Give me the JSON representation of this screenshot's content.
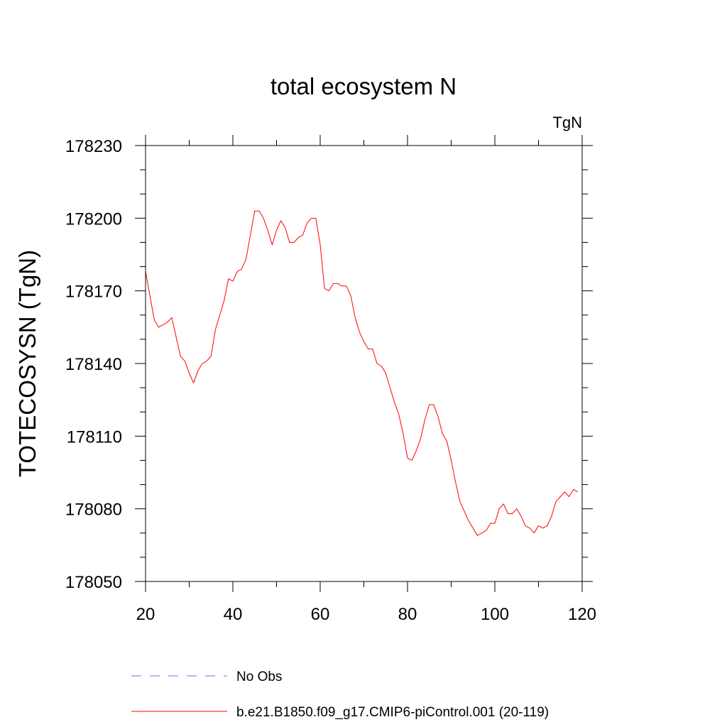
{
  "chart_data": {
    "type": "line",
    "title": "total ecosystem N",
    "units_label": "TgN",
    "ylabel": "TOTECOSYSN  (TgN)",
    "xlabel": "",
    "xlim": [
      20,
      120
    ],
    "ylim": [
      178050,
      178230
    ],
    "xticks": [
      20,
      40,
      60,
      80,
      100,
      120
    ],
    "yticks": [
      178050,
      178080,
      178110,
      178140,
      178170,
      178200,
      178230
    ],
    "x_minor_step": 10,
    "y_minor_step": 10,
    "grid": false,
    "legend_position": "bottom-left",
    "series": [
      {
        "name": "No Obs",
        "color": "#7b68ee",
        "style": "dashed",
        "x": [],
        "y": []
      },
      {
        "name": "b.e21.B1850.f09_g17.CMIP6-piControl.001 (20-119)",
        "color": "#ff0000",
        "style": "solid",
        "x": [
          20,
          21,
          22,
          23,
          24,
          25,
          26,
          27,
          28,
          29,
          30,
          31,
          32,
          33,
          34,
          35,
          36,
          37,
          38,
          39,
          40,
          41,
          42,
          43,
          44,
          45,
          46,
          47,
          48,
          49,
          50,
          51,
          52,
          53,
          54,
          55,
          56,
          57,
          58,
          59,
          60,
          61,
          62,
          63,
          64,
          65,
          66,
          67,
          68,
          69,
          70,
          71,
          72,
          73,
          74,
          75,
          76,
          77,
          78,
          79,
          80,
          81,
          82,
          83,
          84,
          85,
          86,
          87,
          88,
          89,
          90,
          91,
          92,
          93,
          94,
          95,
          96,
          97,
          98,
          99,
          100,
          101,
          102,
          103,
          104,
          105,
          106,
          107,
          108,
          109,
          110,
          111,
          112,
          113,
          114,
          115,
          116,
          117,
          118,
          119
        ],
        "y": [
          178178,
          178168,
          178158,
          178155,
          178156,
          178157,
          178159,
          178151,
          178143,
          178141,
          178136,
          178132,
          178137,
          178140,
          178141,
          178143,
          178154,
          178160,
          178166,
          178175,
          178174,
          178178,
          178179,
          178183,
          178193,
          178203,
          178203,
          178200,
          178195,
          178189,
          178195,
          178199,
          178196,
          178190,
          178190,
          178192,
          178193,
          178198,
          178200,
          178200,
          178189,
          178171,
          178170,
          178173,
          178173,
          178172,
          178172,
          178168,
          178159,
          178153,
          178149,
          178146,
          178146,
          178140,
          178139,
          178136,
          178130,
          178124,
          178119,
          178111,
          178101,
          178100,
          178104,
          178109,
          178117,
          178123,
          178123,
          178118,
          178111,
          178108,
          178100,
          178091,
          178083,
          178079,
          178075,
          178072,
          178069,
          178070,
          178071,
          178074,
          178074,
          178080,
          178082,
          178078,
          178078,
          178080,
          178077,
          178073,
          178072,
          178070,
          178073,
          178072,
          178073,
          178077,
          178083,
          178085,
          178087,
          178085,
          178088,
          178087
        ]
      }
    ]
  }
}
